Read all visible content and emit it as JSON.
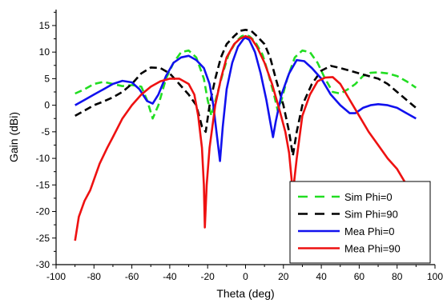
{
  "chart_data": {
    "type": "line",
    "title": "",
    "xlabel": "Theta (deg)",
    "ylabel": "Gain (dBi)",
    "xlim": [
      -100,
      100
    ],
    "ylim": [
      -30,
      18
    ],
    "xticks": [
      "-100",
      "-80",
      "-60",
      "-40",
      "-20",
      "0",
      "20",
      "40",
      "60",
      "80",
      "100"
    ],
    "yticks": [
      "-30",
      "-25",
      "-20",
      "-15",
      "-10",
      "-5",
      "0",
      "5",
      "10",
      "15"
    ],
    "grid": false,
    "legend_position": "bottom-right",
    "series": [
      {
        "name": "Sim Phi=0",
        "color": "#22dd22",
        "dash": "dashed",
        "points": [
          [
            -90,
            2.2
          ],
          [
            -85,
            3
          ],
          [
            -80,
            4
          ],
          [
            -75,
            4.4
          ],
          [
            -70,
            4
          ],
          [
            -65,
            3.6
          ],
          [
            -60,
            3.8
          ],
          [
            -55,
            3.5
          ],
          [
            -52,
            1
          ],
          [
            -49,
            -2.5
          ],
          [
            -46,
            0
          ],
          [
            -42,
            5
          ],
          [
            -38,
            8
          ],
          [
            -34,
            10
          ],
          [
            -30,
            10.3
          ],
          [
            -26,
            9
          ],
          [
            -22,
            5
          ],
          [
            -20,
            1
          ],
          [
            -18,
            -2
          ],
          [
            -15,
            2
          ],
          [
            -12,
            6
          ],
          [
            -9,
            9.5
          ],
          [
            -5,
            12
          ],
          [
            -2,
            13
          ],
          [
            0,
            13.2
          ],
          [
            2,
            13
          ],
          [
            5,
            12
          ],
          [
            9,
            9.5
          ],
          [
            12,
            6
          ],
          [
            15,
            2
          ],
          [
            17,
            -1
          ],
          [
            19,
            1
          ],
          [
            22,
            5
          ],
          [
            26,
            9
          ],
          [
            30,
            10.3
          ],
          [
            34,
            10
          ],
          [
            38,
            8
          ],
          [
            42,
            5
          ],
          [
            46,
            2.5
          ],
          [
            50,
            2.2
          ],
          [
            54,
            3
          ],
          [
            58,
            4
          ],
          [
            62,
            5.5
          ],
          [
            66,
            6.1
          ],
          [
            70,
            6.2
          ],
          [
            75,
            6
          ],
          [
            80,
            5.5
          ],
          [
            85,
            4.5
          ],
          [
            90,
            3.3
          ]
        ]
      },
      {
        "name": "Sim Phi=90",
        "color": "#000000",
        "dash": "dashed",
        "points": [
          [
            -90,
            -2
          ],
          [
            -85,
            -1
          ],
          [
            -80,
            0
          ],
          [
            -75,
            0.7
          ],
          [
            -70,
            1.5
          ],
          [
            -65,
            2.5
          ],
          [
            -60,
            4
          ],
          [
            -55,
            6
          ],
          [
            -50,
            7.1
          ],
          [
            -45,
            7
          ],
          [
            -40,
            6
          ],
          [
            -35,
            4
          ],
          [
            -30,
            2
          ],
          [
            -26,
            0
          ],
          [
            -23,
            -4
          ],
          [
            -21,
            -5
          ],
          [
            -19,
            0
          ],
          [
            -16,
            5
          ],
          [
            -13,
            9
          ],
          [
            -10,
            11.5
          ],
          [
            -6,
            13
          ],
          [
            -3,
            14
          ],
          [
            0,
            14.2
          ],
          [
            3,
            14
          ],
          [
            6,
            13
          ],
          [
            10,
            11.5
          ],
          [
            13,
            9
          ],
          [
            16,
            5
          ],
          [
            20,
            0
          ],
          [
            23,
            -5
          ],
          [
            25,
            -9.5
          ],
          [
            27,
            -5
          ],
          [
            30,
            0
          ],
          [
            35,
            4
          ],
          [
            40,
            6.5
          ],
          [
            45,
            7.4
          ],
          [
            50,
            7
          ],
          [
            55,
            6.5
          ],
          [
            60,
            6
          ],
          [
            65,
            5.5
          ],
          [
            70,
            5
          ],
          [
            75,
            4
          ],
          [
            80,
            2.5
          ],
          [
            85,
            1
          ],
          [
            90,
            -0.5
          ]
        ]
      },
      {
        "name": "Mea Phi=0",
        "color": "#1111ee",
        "dash": "solid",
        "points": [
          [
            -90,
            0
          ],
          [
            -85,
            1
          ],
          [
            -80,
            2
          ],
          [
            -75,
            3
          ],
          [
            -70,
            4
          ],
          [
            -65,
            4.6
          ],
          [
            -60,
            4.3
          ],
          [
            -56,
            3
          ],
          [
            -52,
            0.8
          ],
          [
            -49,
            0.3
          ],
          [
            -46,
            2
          ],
          [
            -42,
            5.5
          ],
          [
            -38,
            8
          ],
          [
            -34,
            9
          ],
          [
            -30,
            9.3
          ],
          [
            -26,
            8.5
          ],
          [
            -22,
            7
          ],
          [
            -19,
            4
          ],
          [
            -17,
            0
          ],
          [
            -15,
            -6
          ],
          [
            -13.5,
            -10.5
          ],
          [
            -12,
            -4
          ],
          [
            -10,
            3
          ],
          [
            -7,
            8
          ],
          [
            -4,
            11
          ],
          [
            -1,
            12.5
          ],
          [
            0,
            12.7
          ],
          [
            2,
            12.3
          ],
          [
            5,
            10
          ],
          [
            8,
            6
          ],
          [
            11,
            1
          ],
          [
            13,
            -3
          ],
          [
            14.5,
            -6
          ],
          [
            16,
            -3
          ],
          [
            19,
            2
          ],
          [
            23,
            6
          ],
          [
            27,
            8.5
          ],
          [
            31,
            8.3
          ],
          [
            35,
            7
          ],
          [
            40,
            5
          ],
          [
            45,
            2
          ],
          [
            50,
            0
          ],
          [
            55,
            -1.5
          ],
          [
            58,
            -1.5
          ],
          [
            62,
            -0.5
          ],
          [
            66,
            0
          ],
          [
            70,
            0.2
          ],
          [
            75,
            0
          ],
          [
            80,
            -0.5
          ],
          [
            85,
            -1.5
          ],
          [
            90,
            -2.5
          ]
        ]
      },
      {
        "name": "Mea Phi=90",
        "color": "#ee1111",
        "dash": "solid",
        "points": [
          [
            -90,
            -25.5
          ],
          [
            -88,
            -21
          ],
          [
            -85,
            -18
          ],
          [
            -82,
            -16
          ],
          [
            -80,
            -14
          ],
          [
            -77,
            -11
          ],
          [
            -73,
            -8
          ],
          [
            -70,
            -6
          ],
          [
            -65,
            -2.5
          ],
          [
            -60,
            0
          ],
          [
            -55,
            2
          ],
          [
            -50,
            3.5
          ],
          [
            -45,
            4.5
          ],
          [
            -40,
            5
          ],
          [
            -35,
            5
          ],
          [
            -30,
            4
          ],
          [
            -27,
            2
          ],
          [
            -25,
            -2
          ],
          [
            -23,
            -8
          ],
          [
            -22,
            -15
          ],
          [
            -21.5,
            -23
          ],
          [
            -20.5,
            -15
          ],
          [
            -19,
            -8
          ],
          [
            -16,
            0
          ],
          [
            -13,
            5
          ],
          [
            -10,
            9
          ],
          [
            -6,
            11.5
          ],
          [
            -3,
            12.5
          ],
          [
            0,
            13
          ],
          [
            3,
            12.6
          ],
          [
            6,
            11
          ],
          [
            10,
            8
          ],
          [
            14,
            4
          ],
          [
            18,
            -1
          ],
          [
            21,
            -5
          ],
          [
            23,
            -9
          ],
          [
            25,
            -16.5
          ],
          [
            27,
            -10
          ],
          [
            30,
            -2
          ],
          [
            34,
            2
          ],
          [
            38,
            4.5
          ],
          [
            42,
            5.2
          ],
          [
            46,
            5.3
          ],
          [
            50,
            4
          ],
          [
            55,
            1
          ],
          [
            60,
            -2
          ],
          [
            65,
            -5
          ],
          [
            70,
            -7.5
          ],
          [
            75,
            -10
          ],
          [
            80,
            -12
          ],
          [
            85,
            -15
          ],
          [
            88,
            -17
          ]
        ]
      }
    ]
  }
}
